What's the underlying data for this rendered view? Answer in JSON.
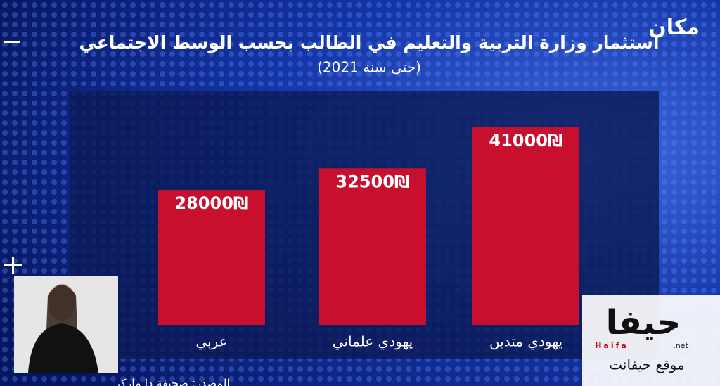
{
  "chart_data": {
    "type": "bar",
    "title": "استثمار وزارة التربية والتعليم في الطالب بحسب الوسط الاجتماعي",
    "subtitle": "(حتى سنة 2021)",
    "categories": [
      "عربي",
      "يهودي علماني",
      "يهودي متدين"
    ],
    "values": [
      28000,
      32500,
      41000
    ],
    "value_labels": [
      "28000₪",
      "32500₪",
      "41000₪"
    ],
    "color": "#c8102e",
    "source": "المصدر: صحيفة دا ماركر"
  },
  "branding": {
    "channel": "مكان",
    "logo": "حيفا",
    "logo_latin": "Haifa",
    "logo_suffix": ".net",
    "site": "موقع حيفانت"
  }
}
